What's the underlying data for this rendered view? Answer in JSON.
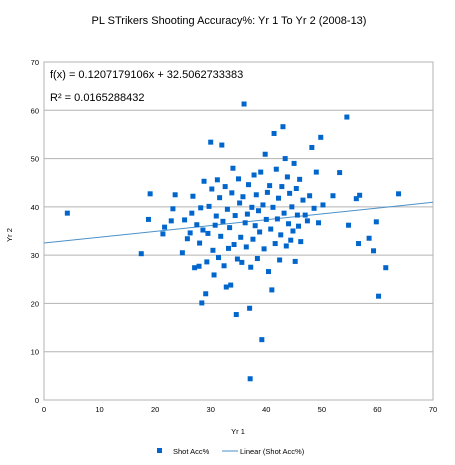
{
  "chart_data": {
    "type": "scatter",
    "title": "PL STrikers Shooting Accuracy%: Yr 1 To Yr 2 (2008-13)",
    "xlabel": "Yr 1",
    "ylabel": "Yr 2",
    "xlim": [
      0,
      70
    ],
    "ylim": [
      0,
      70
    ],
    "x_ticks": [
      "0",
      "10",
      "20",
      "30",
      "40",
      "50",
      "60",
      "70"
    ],
    "y_ticks": [
      "0",
      "10",
      "20",
      "30",
      "40",
      "50",
      "60",
      "70"
    ],
    "grid": "horizontal",
    "equation": "f(x) = 0.1207179106x + 32.5062733383",
    "r_squared": "R² = 0.0165288432",
    "trendline": {
      "slope": 0.1207179106,
      "intercept": 32.5062733383
    },
    "legend_placement": "bottom",
    "series": [
      {
        "name": "Shot Acc%",
        "color": "#0066cc",
        "points": [
          [
            4.2,
            38.7
          ],
          [
            17.5,
            30.3
          ],
          [
            18.8,
            37.4
          ],
          [
            19.1,
            42.7
          ],
          [
            21.4,
            34.4
          ],
          [
            21.7,
            35.8
          ],
          [
            22.9,
            37.1
          ],
          [
            23.2,
            39.6
          ],
          [
            23.6,
            42.5
          ],
          [
            24.9,
            30.5
          ],
          [
            25.3,
            37.3
          ],
          [
            25.8,
            33.4
          ],
          [
            26.3,
            34.6
          ],
          [
            26.6,
            38.7
          ],
          [
            26.8,
            42.2
          ],
          [
            27.1,
            27.4
          ],
          [
            27.5,
            36.3
          ],
          [
            27.9,
            27.7
          ],
          [
            28.0,
            32.5
          ],
          [
            28.2,
            39.8
          ],
          [
            28.4,
            20.1
          ],
          [
            28.6,
            35.2
          ],
          [
            28.8,
            45.3
          ],
          [
            29.1,
            22.0
          ],
          [
            29.3,
            28.6
          ],
          [
            29.5,
            34.5
          ],
          [
            29.7,
            40.1
          ],
          [
            30.0,
            53.4
          ],
          [
            30.2,
            43.7
          ],
          [
            30.4,
            31.0
          ],
          [
            30.6,
            25.9
          ],
          [
            30.8,
            36.2
          ],
          [
            31.0,
            38.1
          ],
          [
            31.2,
            45.6
          ],
          [
            31.4,
            29.5
          ],
          [
            31.6,
            41.9
          ],
          [
            31.8,
            33.9
          ],
          [
            32.0,
            52.8
          ],
          [
            32.2,
            37.0
          ],
          [
            32.4,
            27.8
          ],
          [
            32.6,
            44.2
          ],
          [
            32.8,
            23.4
          ],
          [
            33.0,
            39.5
          ],
          [
            33.2,
            31.4
          ],
          [
            33.4,
            35.7
          ],
          [
            33.6,
            23.8
          ],
          [
            33.8,
            42.9
          ],
          [
            34.0,
            48.0
          ],
          [
            34.2,
            32.2
          ],
          [
            34.4,
            38.2
          ],
          [
            34.6,
            17.7
          ],
          [
            34.8,
            29.2
          ],
          [
            35.0,
            45.8
          ],
          [
            35.2,
            40.8
          ],
          [
            35.4,
            33.7
          ],
          [
            35.6,
            28.5
          ],
          [
            35.8,
            42.1
          ],
          [
            36.0,
            61.3
          ],
          [
            36.2,
            36.7
          ],
          [
            36.4,
            31.7
          ],
          [
            36.6,
            38.5
          ],
          [
            36.8,
            44.6
          ],
          [
            37.0,
            19.0
          ],
          [
            37.1,
            4.4
          ],
          [
            37.2,
            27.5
          ],
          [
            37.4,
            39.9
          ],
          [
            37.6,
            33.3
          ],
          [
            37.8,
            46.6
          ],
          [
            38.0,
            36.1
          ],
          [
            38.2,
            42.5
          ],
          [
            38.4,
            29.3
          ],
          [
            38.6,
            39.2
          ],
          [
            38.8,
            34.8
          ],
          [
            39.0,
            47.2
          ],
          [
            39.2,
            12.5
          ],
          [
            39.4,
            40.4
          ],
          [
            39.6,
            31.3
          ],
          [
            39.8,
            50.9
          ],
          [
            40.0,
            37.4
          ],
          [
            40.2,
            43.0
          ],
          [
            40.4,
            26.6
          ],
          [
            40.6,
            44.4
          ],
          [
            40.8,
            35.4
          ],
          [
            41.0,
            22.8
          ],
          [
            41.2,
            39.9
          ],
          [
            41.4,
            55.2
          ],
          [
            41.6,
            32.4
          ],
          [
            41.8,
            47.8
          ],
          [
            42.0,
            37.5
          ],
          [
            42.2,
            41.8
          ],
          [
            42.4,
            29.0
          ],
          [
            42.6,
            34.2
          ],
          [
            42.8,
            44.2
          ],
          [
            43.0,
            56.6
          ],
          [
            43.2,
            38.7
          ],
          [
            43.4,
            50.0
          ],
          [
            43.6,
            31.9
          ],
          [
            43.8,
            46.2
          ],
          [
            44.0,
            36.5
          ],
          [
            44.2,
            42.8
          ],
          [
            44.4,
            33.1
          ],
          [
            44.6,
            40.0
          ],
          [
            44.8,
            35.0
          ],
          [
            45.0,
            49.0
          ],
          [
            45.2,
            28.7
          ],
          [
            45.4,
            43.8
          ],
          [
            45.6,
            38.3
          ],
          [
            45.8,
            36.0
          ],
          [
            46.0,
            45.7
          ],
          [
            46.2,
            32.8
          ],
          [
            46.6,
            41.4
          ],
          [
            47.0,
            38.3
          ],
          [
            47.4,
            37.1
          ],
          [
            47.8,
            42.3
          ],
          [
            48.2,
            52.3
          ],
          [
            48.6,
            39.7
          ],
          [
            49.0,
            47.2
          ],
          [
            49.4,
            36.7
          ],
          [
            49.8,
            54.4
          ],
          [
            50.2,
            40.4
          ],
          [
            52.0,
            42.3
          ],
          [
            53.2,
            47.1
          ],
          [
            54.5,
            58.6
          ],
          [
            54.8,
            36.2
          ],
          [
            56.2,
            41.7
          ],
          [
            56.8,
            42.4
          ],
          [
            56.6,
            32.4
          ],
          [
            58.5,
            33.5
          ],
          [
            59.3,
            30.9
          ],
          [
            59.8,
            36.9
          ],
          [
            60.2,
            21.5
          ],
          [
            61.5,
            27.4
          ],
          [
            63.8,
            42.7
          ]
        ]
      }
    ],
    "legend": {
      "markers_label": "Shot Acc%",
      "trend_label": "Linear (Shot Acc%)",
      "trend_color": "#4a90c8"
    }
  }
}
